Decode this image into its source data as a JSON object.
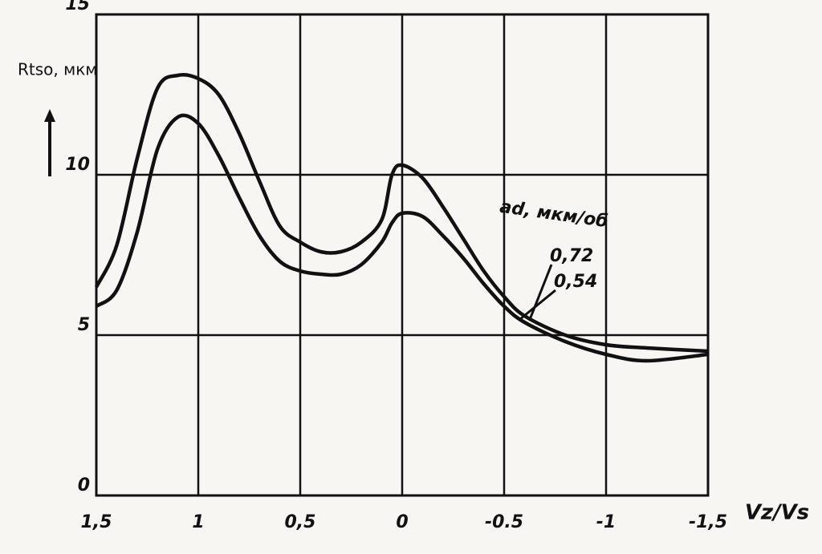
{
  "chart_data": {
    "type": "line",
    "y_label": "Rtso, мкм",
    "x_label": "Vz/Vs",
    "legend_title": "ad, мкм/об",
    "x": [
      1.5,
      1.4,
      1.3,
      1.2,
      1.1,
      1.0,
      0.9,
      0.8,
      0.7,
      0.6,
      0.5,
      0.4,
      0.3,
      0.2,
      0.1,
      0.05,
      0.0,
      -0.1,
      -0.2,
      -0.3,
      -0.4,
      -0.5,
      -0.6,
      -0.8,
      -1.0,
      -1.2,
      -1.5
    ],
    "series": [
      {
        "name": "0,72",
        "color": "#111111",
        "values": [
          6.5,
          7.8,
          10.5,
          12.7,
          13.1,
          13.0,
          12.5,
          11.3,
          9.8,
          8.4,
          7.9,
          7.6,
          7.6,
          7.9,
          8.6,
          10.0,
          10.3,
          9.9,
          9.0,
          8.0,
          7.0,
          6.2,
          5.6,
          5.0,
          4.7,
          4.6,
          4.5
        ]
      },
      {
        "name": "0,54",
        "color": "#111111",
        "values": [
          5.9,
          6.4,
          8.2,
          10.8,
          11.8,
          11.6,
          10.6,
          9.3,
          8.1,
          7.3,
          7.0,
          6.9,
          6.9,
          7.2,
          7.9,
          8.5,
          8.8,
          8.7,
          8.1,
          7.4,
          6.6,
          5.9,
          5.4,
          4.8,
          4.4,
          4.2,
          4.4
        ]
      }
    ],
    "xlim": [
      1.5,
      -1.5
    ],
    "xticks": [
      {
        "value": 1.5,
        "label": "1,5"
      },
      1,
      {
        "value": 0.5,
        "label": "0,5"
      },
      0,
      {
        "value": -0.5,
        "label": "-0.5"
      },
      -1,
      {
        "value": -1.5,
        "label": "-1,5"
      }
    ],
    "ylim": [
      0,
      15
    ],
    "yticks": [
      0,
      5,
      10,
      15
    ],
    "grid": true
  }
}
